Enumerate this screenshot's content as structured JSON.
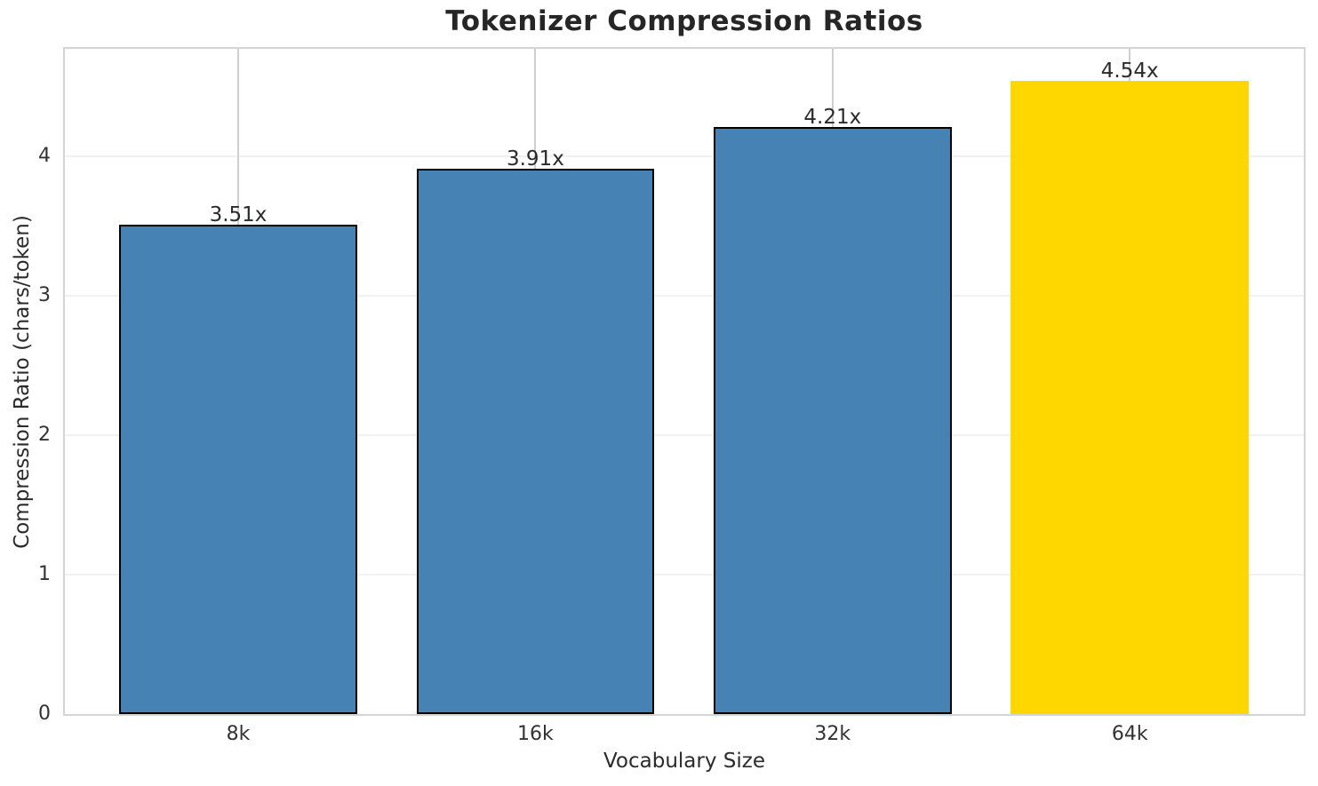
{
  "chart_data": {
    "type": "bar",
    "title": "Tokenizer Compression Ratios",
    "xlabel": "Vocabulary Size",
    "ylabel": "Compression Ratio (chars/token)",
    "categories": [
      "8k",
      "16k",
      "32k",
      "64k"
    ],
    "values": [
      3.51,
      3.91,
      4.21,
      4.54
    ],
    "bar_labels": [
      "3.51x",
      "3.91x",
      "4.21x",
      "4.54x"
    ],
    "bar_colors": [
      "#4682b4",
      "#4682b4",
      "#4682b4",
      "#ffd700"
    ],
    "bar_edge_colors": [
      "#000000",
      "#000000",
      "#000000",
      "none"
    ],
    "yticks": [
      "0",
      "1",
      "2",
      "3",
      "4"
    ],
    "ytick_values": [
      0,
      1,
      2,
      3,
      4
    ],
    "ylim": [
      0,
      4.77
    ],
    "bar_width_fraction": 0.8,
    "grid": "on",
    "legend_position": "none",
    "colors": {
      "base_bar": "#4682b4",
      "highlight_bar": "#ffd700",
      "bar_edge": "#000000",
      "grid_vertical": "#cfcfcf",
      "grid_horizontal": "#f1f1f1",
      "spine": "#d4d4d4",
      "text": "#262626"
    }
  }
}
